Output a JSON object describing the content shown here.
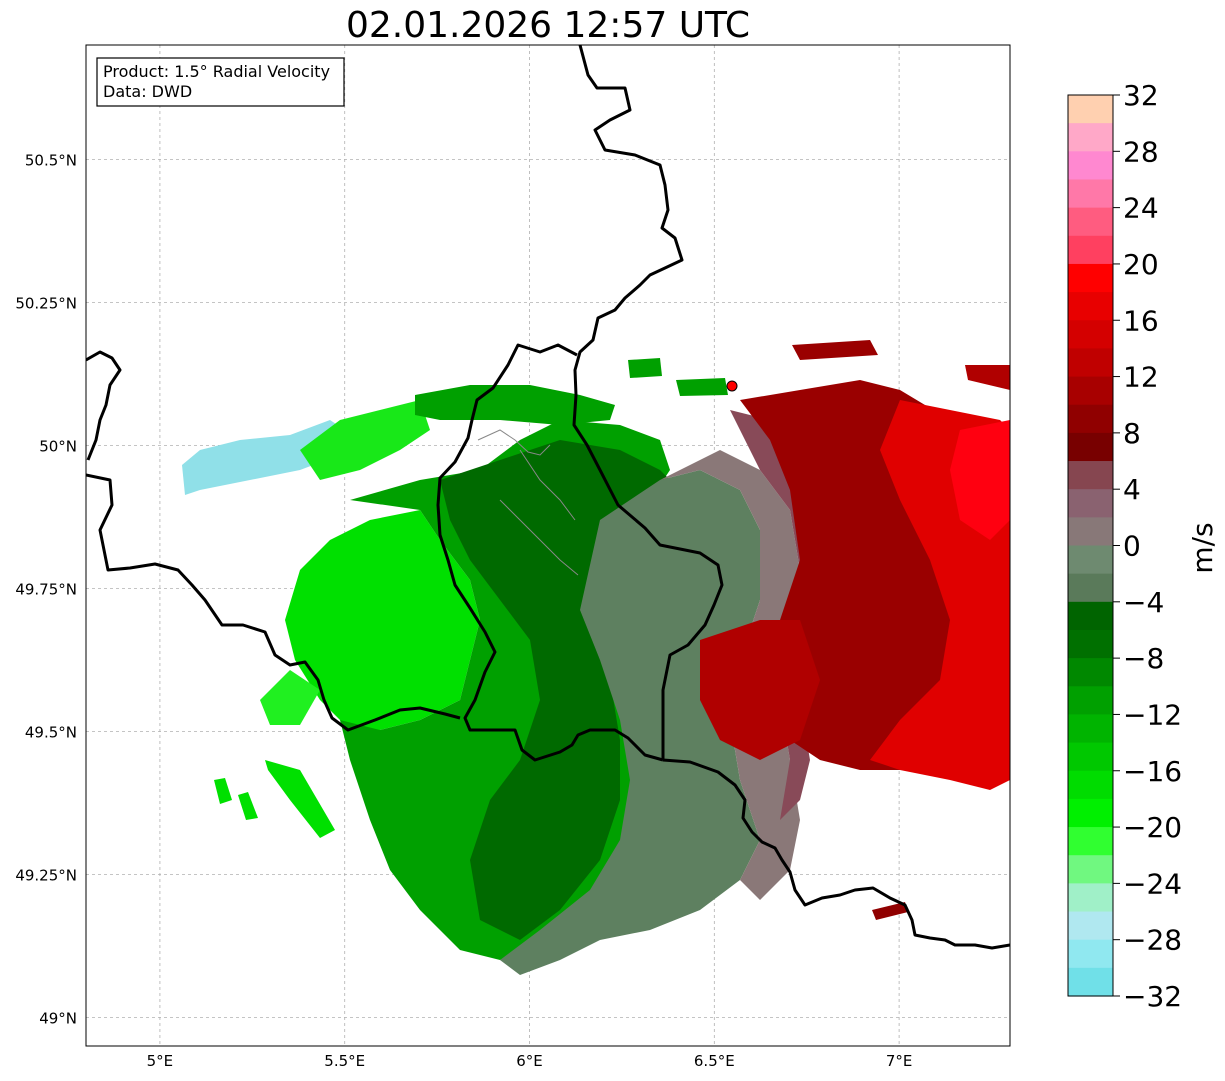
{
  "title": "02.01.2026 12:57 UTC",
  "info_box": {
    "product_line": "Product: 1.5° Radial Velocity",
    "data_line": "Data: DWD"
  },
  "axes": {
    "lon_range": [
      4.8,
      7.3
    ],
    "lat_range": [
      48.95,
      50.7
    ],
    "x_ticks": [
      {
        "value": 5.0,
        "label": "5°E"
      },
      {
        "value": 5.5,
        "label": "5.5°E"
      },
      {
        "value": 6.0,
        "label": "6°E"
      },
      {
        "value": 6.5,
        "label": "6.5°E"
      },
      {
        "value": 7.0,
        "label": "7°E"
      }
    ],
    "y_ticks": [
      {
        "value": 49.0,
        "label": "49°N"
      },
      {
        "value": 49.25,
        "label": "49.25°N"
      },
      {
        "value": 49.5,
        "label": "49.5°N"
      },
      {
        "value": 49.75,
        "label": "49.75°N"
      },
      {
        "value": 50.0,
        "label": "50°N"
      },
      {
        "value": 50.25,
        "label": "50.25°N"
      },
      {
        "value": 50.5,
        "label": "50.5°N"
      }
    ],
    "grid": true
  },
  "colorbar": {
    "label": "m/s",
    "min": -32,
    "max": 32,
    "tick_values": [
      32,
      28,
      24,
      20,
      16,
      12,
      8,
      4,
      0,
      -4,
      -8,
      -12,
      -16,
      -20,
      -24,
      -28,
      -32
    ],
    "tick_labels": [
      "32",
      "28",
      "24",
      "20",
      "16",
      "12",
      "8",
      "4",
      "0",
      "−4",
      "−8",
      "−12",
      "−16",
      "−20",
      "−24",
      "−28",
      "−32"
    ],
    "colors_top_to_bottom": [
      "#ffd0b0",
      "#ffa8c8",
      "#ff88d0",
      "#ff78a8",
      "#ff5c80",
      "#ff4060",
      "#ff0000",
      "#e80000",
      "#d40000",
      "#c00000",
      "#a80000",
      "#900000",
      "#780000",
      "#864650",
      "#8a6270",
      "#887878",
      "#6e8a70",
      "#5a7a5a",
      "#006400",
      "#007000",
      "#008800",
      "#00a000",
      "#00b400",
      "#00c800",
      "#00dc00",
      "#00f000",
      "#30ff30",
      "#70f880",
      "#a0f0c8",
      "#b0e8f0",
      "#90e8f0",
      "#70e0e8"
    ]
  },
  "overlays": {
    "marker_color": "#ff0000",
    "velocity_colors": {
      "strong_inbound": "#00e000",
      "inbound": "#00a000",
      "weak_inbound": "#006a00",
      "near_zero_green": "#5e8060",
      "near_zero_gray": "#8a7878",
      "weak_outbound": "#884a58",
      "outbound": "#9a0000",
      "strong_outbound": "#e00000",
      "very_strong_outbound": "#ff0010",
      "extreme_inbound": "#90e0e8"
    }
  }
}
